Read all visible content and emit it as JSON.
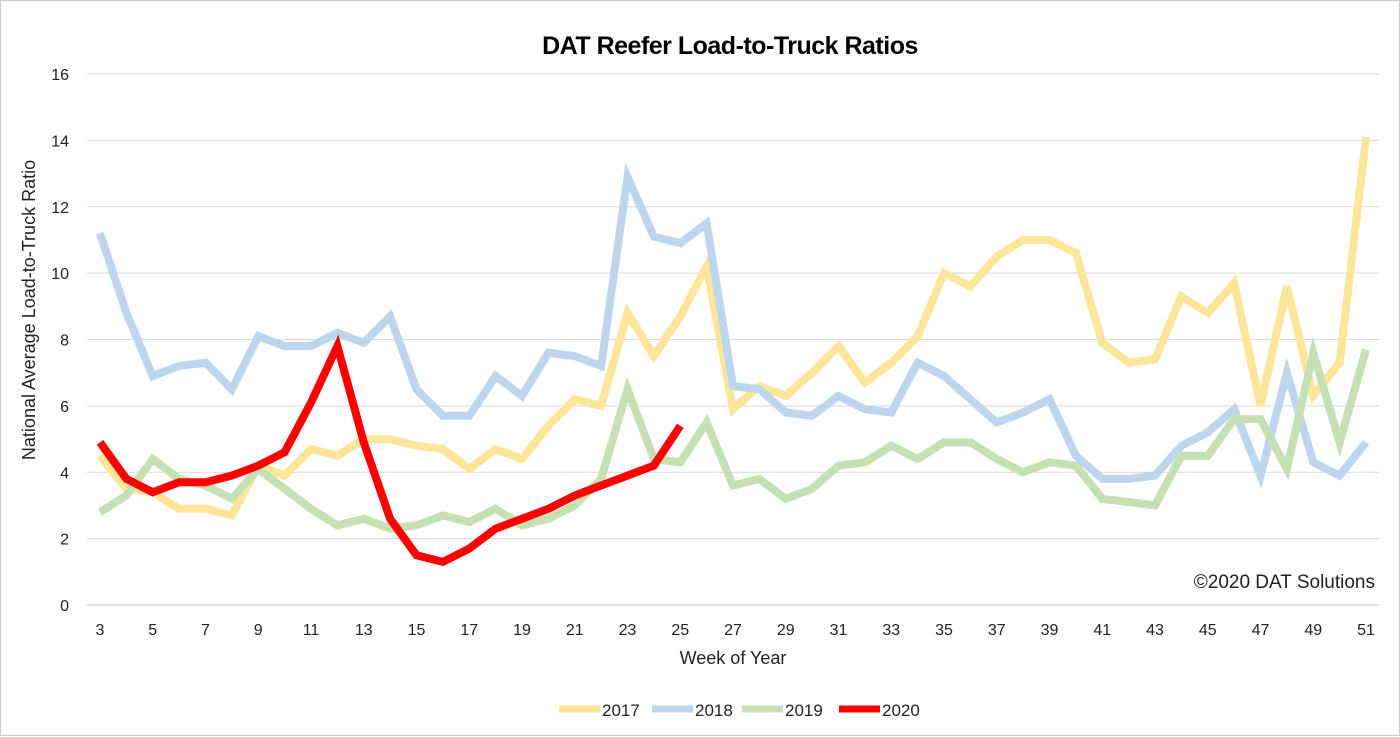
{
  "chart_data": {
    "type": "line",
    "title": "DAT Reefer Load-to-Truck Ratios",
    "xlabel": "Week of Year",
    "ylabel": "National Average Load-to-Truck Ratio",
    "credit": "©2020 DAT Solutions",
    "ylim": [
      0,
      16
    ],
    "yticks": [
      0,
      2,
      4,
      6,
      8,
      10,
      12,
      14,
      16
    ],
    "xlim": [
      3,
      51
    ],
    "xticks": [
      3,
      5,
      7,
      9,
      11,
      13,
      15,
      17,
      19,
      21,
      23,
      25,
      27,
      29,
      31,
      33,
      35,
      37,
      39,
      41,
      43,
      45,
      47,
      49,
      51
    ],
    "grid": true,
    "legend": "bottom",
    "series": [
      {
        "name": "2017",
        "color": "#fde59a",
        "width": 8,
        "x": [
          3,
          4,
          5,
          6,
          7,
          8,
          9,
          10,
          11,
          12,
          13,
          14,
          15,
          16,
          17,
          18,
          19,
          20,
          21,
          22,
          23,
          24,
          25,
          26,
          27,
          28,
          29,
          30,
          31,
          32,
          33,
          34,
          35,
          36,
          37,
          38,
          39,
          40,
          41,
          42,
          43,
          44,
          45,
          46,
          47,
          48,
          49,
          50,
          51
        ],
        "values": [
          4.5,
          3.5,
          3.4,
          2.9,
          2.9,
          2.7,
          4.2,
          3.9,
          4.7,
          4.5,
          5.0,
          5.0,
          4.8,
          4.7,
          4.1,
          4.7,
          4.4,
          5.4,
          6.2,
          6.0,
          8.8,
          7.5,
          8.7,
          10.2,
          5.9,
          6.6,
          6.3,
          7.0,
          7.8,
          6.7,
          7.3,
          8.1,
          10.0,
          9.6,
          10.5,
          11.0,
          11.0,
          10.6,
          7.9,
          7.3,
          7.4,
          9.3,
          8.8,
          9.7,
          6.0,
          9.6,
          6.3,
          7.3,
          14.1
        ]
      },
      {
        "name": "2018",
        "color": "#bdd6ee",
        "width": 8,
        "x": [
          3,
          4,
          5,
          6,
          7,
          8,
          9,
          10,
          11,
          12,
          13,
          14,
          15,
          16,
          17,
          18,
          19,
          20,
          21,
          22,
          23,
          24,
          25,
          26,
          27,
          28,
          29,
          30,
          31,
          32,
          33,
          34,
          35,
          36,
          37,
          38,
          39,
          40,
          41,
          42,
          43,
          44,
          45,
          46,
          47,
          48,
          49,
          50,
          51
        ],
        "values": [
          11.2,
          8.8,
          6.9,
          7.2,
          7.3,
          6.5,
          8.1,
          7.8,
          7.8,
          8.2,
          7.9,
          8.7,
          6.5,
          5.7,
          5.7,
          6.9,
          6.3,
          7.6,
          7.5,
          7.2,
          12.9,
          11.1,
          10.9,
          11.5,
          6.6,
          6.5,
          5.8,
          5.7,
          6.3,
          5.9,
          5.8,
          7.3,
          6.9,
          6.2,
          5.5,
          5.8,
          6.2,
          4.5,
          3.8,
          3.8,
          3.9,
          4.8,
          5.2,
          5.9,
          3.9,
          7.0,
          4.3,
          3.9,
          4.9
        ]
      },
      {
        "name": "2019",
        "color": "#c5e0b3",
        "width": 8,
        "x": [
          3,
          4,
          5,
          6,
          7,
          8,
          9,
          10,
          11,
          12,
          13,
          14,
          15,
          16,
          17,
          18,
          19,
          20,
          21,
          22,
          23,
          24,
          25,
          26,
          27,
          28,
          29,
          30,
          31,
          32,
          33,
          34,
          35,
          36,
          37,
          38,
          39,
          40,
          41,
          42,
          43,
          44,
          45,
          46,
          47,
          48,
          49,
          50,
          51
        ],
        "values": [
          2.8,
          3.3,
          4.4,
          3.8,
          3.6,
          3.2,
          4.1,
          3.5,
          2.9,
          2.4,
          2.6,
          2.3,
          2.4,
          2.7,
          2.5,
          2.9,
          2.4,
          2.6,
          3.0,
          3.8,
          6.5,
          4.4,
          4.3,
          5.5,
          3.6,
          3.8,
          3.2,
          3.5,
          4.2,
          4.3,
          4.8,
          4.4,
          4.9,
          4.9,
          4.4,
          4.0,
          4.3,
          4.2,
          3.2,
          3.1,
          3.0,
          4.5,
          4.5,
          5.6,
          5.6,
          4.1,
          7.6,
          4.9,
          7.7
        ]
      },
      {
        "name": "2020",
        "color": "#ff0000",
        "width": 8,
        "x": [
          3,
          4,
          5,
          6,
          7,
          8,
          9,
          10,
          11,
          12,
          13,
          14,
          15,
          16,
          17,
          18,
          19,
          20,
          21,
          22,
          23,
          24,
          25
        ],
        "values": [
          4.9,
          3.8,
          3.4,
          3.7,
          3.7,
          3.9,
          4.2,
          4.6,
          6.1,
          7.8,
          4.9,
          2.6,
          1.5,
          1.3,
          1.7,
          2.3,
          2.6,
          2.9,
          3.3,
          3.6,
          3.9,
          4.2,
          5.4
        ]
      }
    ]
  }
}
